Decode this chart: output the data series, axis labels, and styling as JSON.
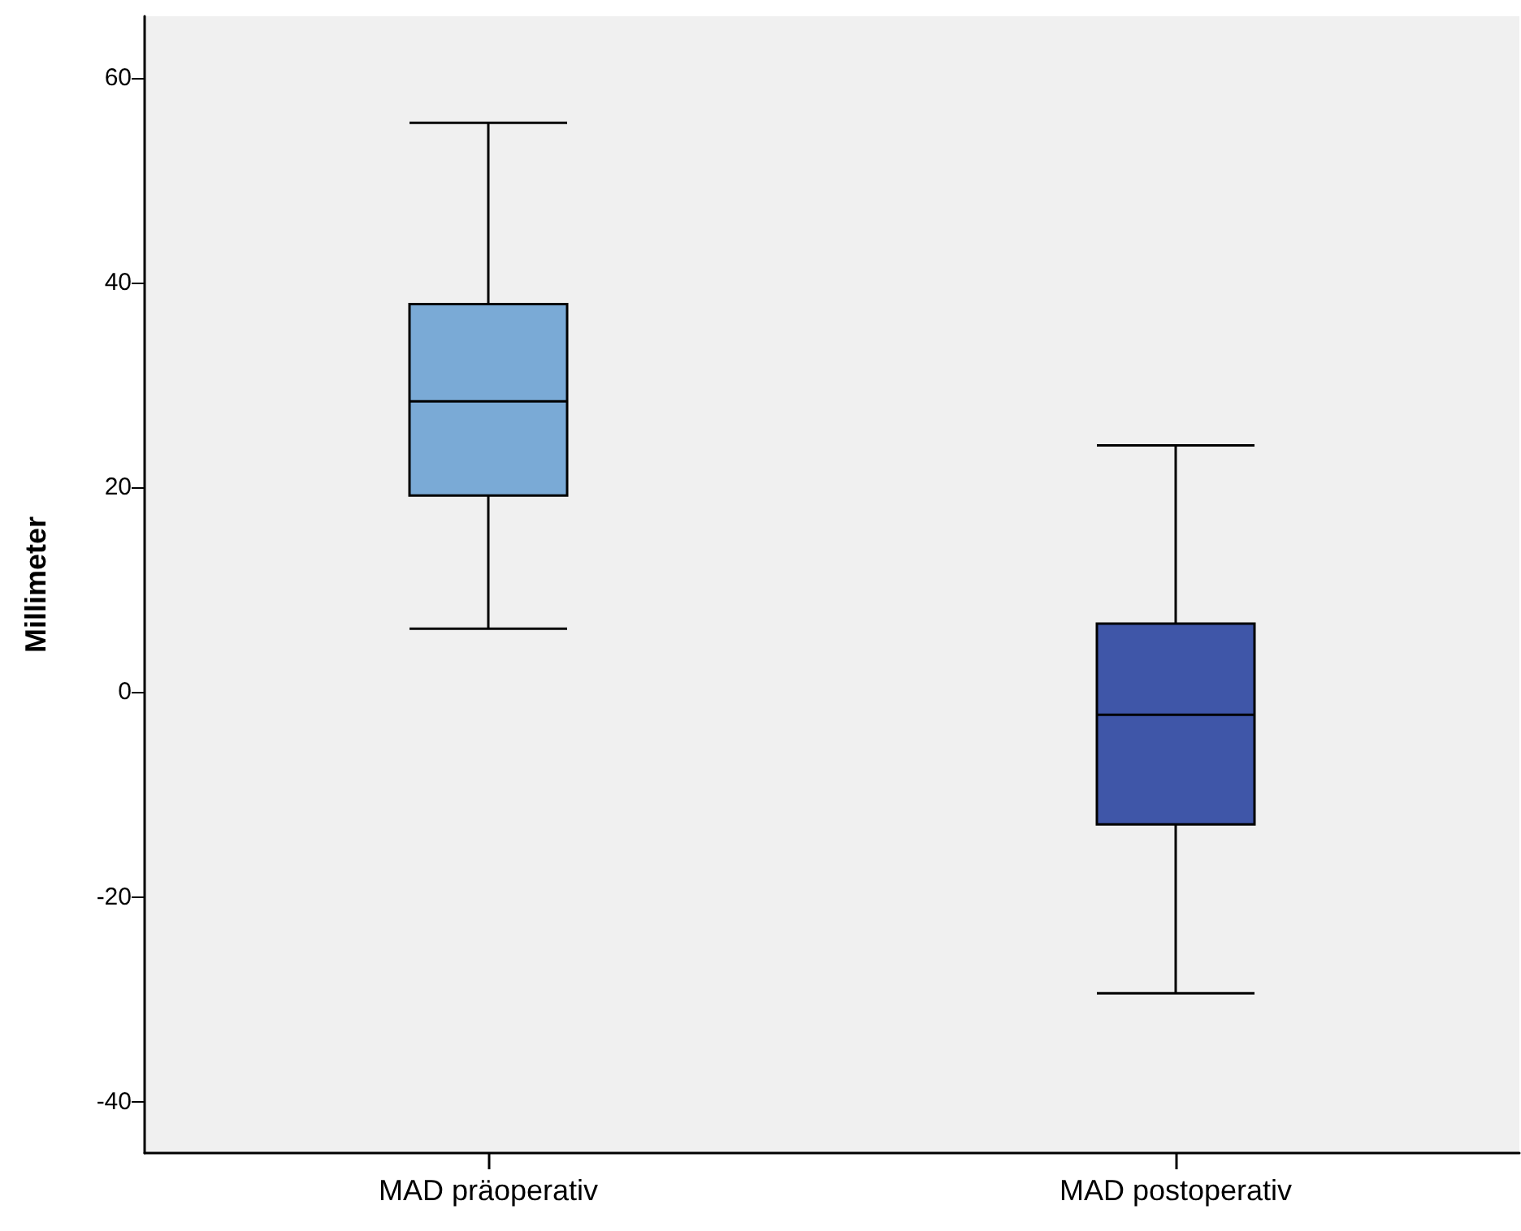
{
  "chart_data": {
    "type": "box",
    "ylabel": "Millimeter",
    "categories": [
      "MAD präoperativ",
      "MAD postoperativ"
    ],
    "boxes": [
      {
        "low": 6.2,
        "q1": 19.2,
        "median": 28.4,
        "q3": 37.9,
        "high": 55.6
      },
      {
        "low": -29.4,
        "q1": -12.9,
        "median": -2.2,
        "q3": 6.7,
        "high": 24.1
      }
    ],
    "colors": [
      "#7aaad6",
      "#3f56a8"
    ],
    "ylim": [
      -45,
      66
    ],
    "yticks": [
      -40,
      -20,
      0,
      20,
      40,
      60
    ],
    "grid": false
  }
}
